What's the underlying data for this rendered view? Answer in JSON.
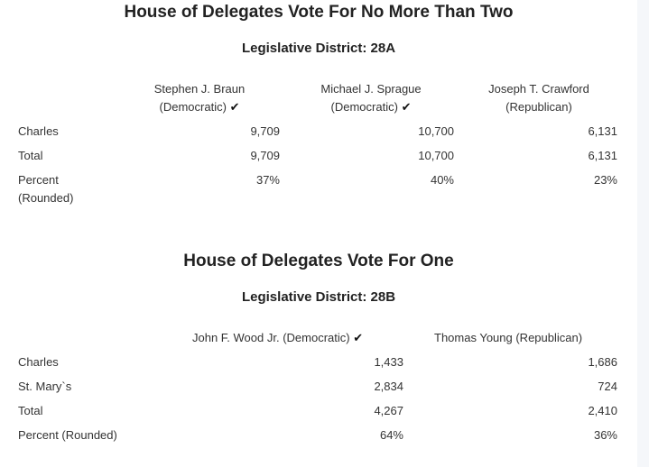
{
  "section1": {
    "title": "House of Delegates Vote For No More Than Two",
    "district": "Legislative District: 28A",
    "candidates": [
      {
        "name": "Stephen J. Braun",
        "party": "(Democratic)",
        "winner": true
      },
      {
        "name": "Michael J. Sprague",
        "party": "(Democratic)",
        "winner": true
      },
      {
        "name": "Joseph T. Crawford",
        "party": "(Republican)",
        "winner": false
      }
    ],
    "rows": [
      {
        "label": "Charles",
        "values": [
          "9,709",
          "10,700",
          "6,131"
        ]
      },
      {
        "label": "Total",
        "values": [
          "9,709",
          "10,700",
          "6,131"
        ]
      },
      {
        "label_line1": "Percent",
        "label_line2": "(Rounded)",
        "values": [
          "37%",
          "40%",
          "23%"
        ]
      }
    ]
  },
  "section2": {
    "title": "House of Delegates Vote For One",
    "district": "Legislative District: 28B",
    "candidates": [
      {
        "name": "John F. Wood Jr. (Democratic)",
        "winner": true
      },
      {
        "name": "Thomas Young (Republican)",
        "winner": false
      }
    ],
    "rows": [
      {
        "label": "Charles",
        "values": [
          "1,433",
          "1,686"
        ]
      },
      {
        "label": "St. Mary`s",
        "values": [
          "2,834",
          "724"
        ]
      },
      {
        "label": "Total",
        "values": [
          "4,267",
          "2,410"
        ]
      },
      {
        "label": "Percent (Rounded)",
        "values": [
          "64%",
          "36%"
        ]
      }
    ]
  },
  "winner_icon": "checkmark-icon"
}
